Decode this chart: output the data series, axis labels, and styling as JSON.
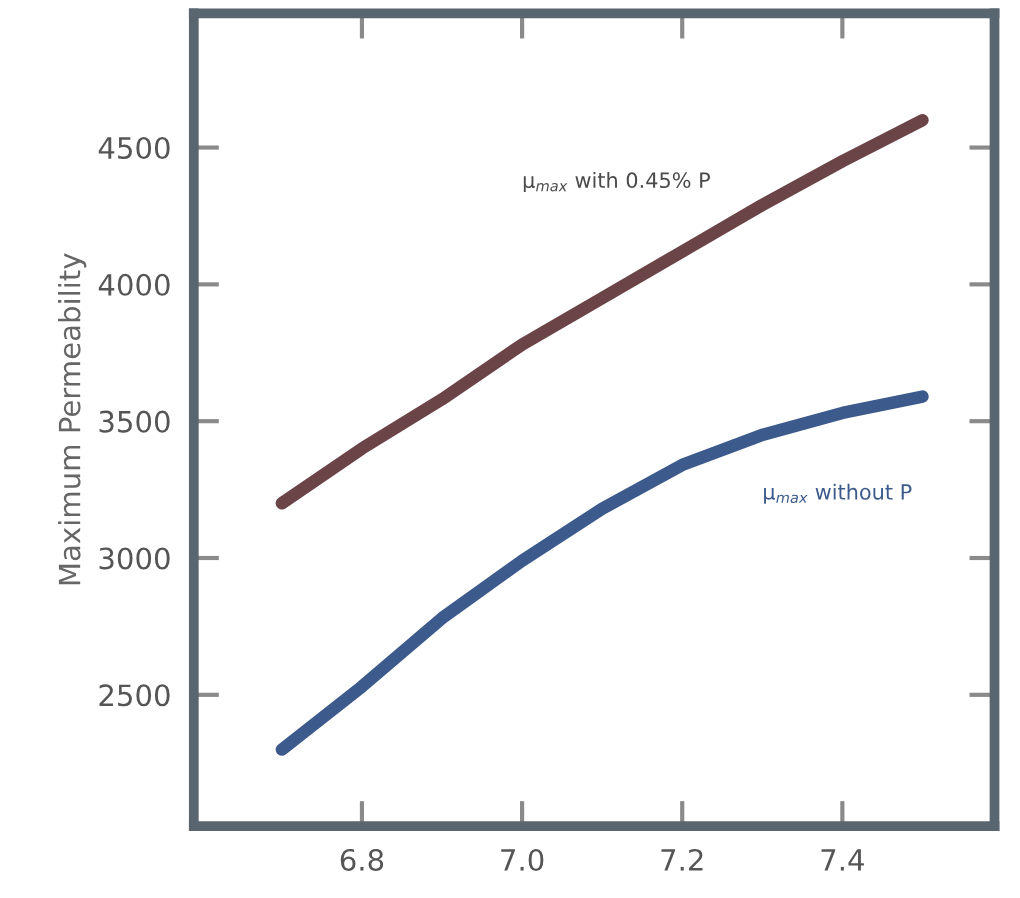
{
  "chart_data": {
    "type": "line",
    "ylabel": "Maximum Permeability",
    "x": [
      6.7,
      6.8,
      6.9,
      7.0,
      7.1,
      7.2,
      7.3,
      7.4,
      7.5
    ],
    "series": [
      {
        "name": "μ$_{max}$ with 0.45% P",
        "color": "#6b4448",
        "values": [
          3200,
          3400,
          3580,
          3780,
          3950,
          4120,
          4290,
          4450,
          4600
        ]
      },
      {
        "name": "μ$_{max}$ without P",
        "color": "#3c5a8c",
        "values": [
          2300,
          2530,
          2780,
          2990,
          3180,
          3340,
          3450,
          3530,
          3590
        ]
      }
    ],
    "xlim": [
      6.59,
      7.59
    ],
    "ylim": [
      2020,
      4990
    ],
    "xticks": [
      6.8,
      {
        "value": 7.0,
        "label": "7.0"
      },
      7.2,
      7.4
    ],
    "yticks": [
      2500,
      3000,
      3500,
      4000,
      4500
    ],
    "grid": false,
    "legend": false,
    "marker": "none",
    "line_style": "solid"
  }
}
